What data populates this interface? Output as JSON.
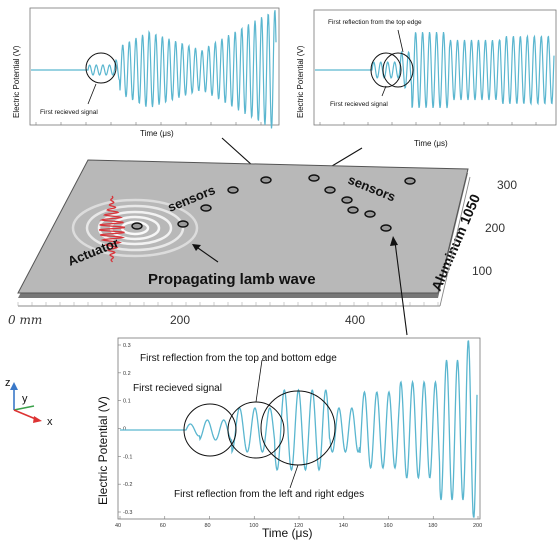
{
  "material_label": "Aluminum 1050",
  "actuator_label": "Actuator",
  "sensors_label": "sensors",
  "wave_label": "Propagating lamb wave",
  "plate_x_ticks": [
    "0 mm",
    "200",
    "400"
  ],
  "plate_y_ticks": [
    "100",
    "200",
    "300"
  ],
  "axis_triad": {
    "z": "z",
    "y": "y",
    "x": "x"
  },
  "colors": {
    "signal": "#5ab6cf",
    "actuator": "#d8343a",
    "plate": "#b8b8b8"
  },
  "top_left_plot": {
    "ylabel": "Electric Potential (V)",
    "xlabel": "Time (μs)",
    "annotation": "First recieved signal"
  },
  "top_right_plot": {
    "ylabel": "Electric Potential (V)",
    "xlabel": "Time (μs)",
    "annotations": [
      "First reflection from the top edge",
      "First recieved signal"
    ]
  },
  "bottom_plot": {
    "ylabel": "Electric Potential (V)",
    "xlabel": "Time (μs)",
    "x_ticks": [
      "40",
      "60",
      "80",
      "100",
      "120",
      "140",
      "160",
      "180",
      "200"
    ],
    "y_ticks": [
      "0.3",
      "0.2",
      "0.1",
      "0",
      "-0.1",
      "-0.2",
      "-0.3"
    ],
    "annotations": {
      "first_signal": "First recieved signal",
      "top_bottom": "First reflection from the top and bottom edge",
      "left_right": "First reflection from the left and right edges"
    }
  }
}
